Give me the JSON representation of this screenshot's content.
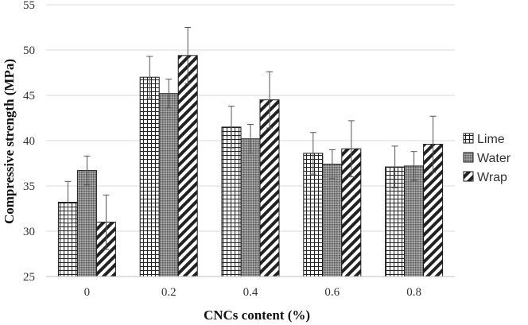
{
  "chart_data": {
    "type": "bar",
    "title": "",
    "xlabel": "CNCs content (%)",
    "ylabel": "Compressive strength (MPa)",
    "ylim": [
      25,
      55
    ],
    "yticks": [
      25,
      30,
      35,
      40,
      45,
      50,
      55
    ],
    "ytick_labels": [
      "25",
      "30",
      "35",
      "40",
      "45",
      "50",
      "55"
    ],
    "grid": true,
    "categories": [
      "0",
      "0.2",
      "0.4",
      "0.6",
      "0.8"
    ],
    "series": [
      {
        "name": "Lime",
        "pattern": "grid",
        "values": [
          33.2,
          47.0,
          41.5,
          38.6,
          37.1
        ],
        "errors": [
          2.3,
          2.3,
          2.3,
          2.3,
          2.3
        ]
      },
      {
        "name": "Water",
        "pattern": "dots",
        "values": [
          36.7,
          45.2,
          40.2,
          37.4,
          37.2
        ],
        "errors": [
          1.6,
          1.6,
          1.6,
          1.6,
          1.6
        ]
      },
      {
        "name": "Wrap",
        "pattern": "diagonal",
        "values": [
          31.0,
          49.4,
          44.5,
          39.1,
          39.6
        ],
        "errors": [
          3.0,
          3.1,
          3.1,
          3.1,
          3.1
        ]
      }
    ],
    "legend_position": "right"
  }
}
